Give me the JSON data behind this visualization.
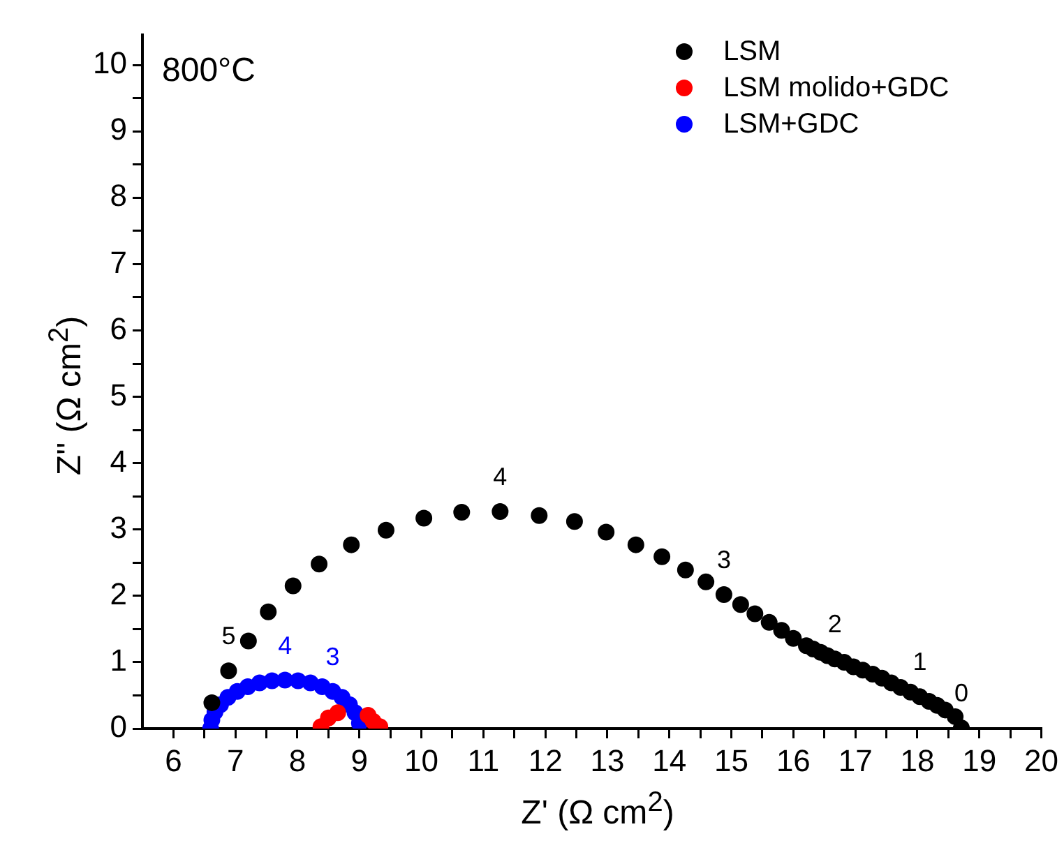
{
  "chart_data": {
    "type": "scatter",
    "xlabel": "Z' (Ω cm$^{2}$)",
    "ylabel": "Z'' (Ω cm$^{2}$)",
    "xlim": [
      5.5,
      20
    ],
    "ylim": [
      0,
      10.45
    ],
    "xticks": [
      6,
      {
        "value": 6.5,
        "label": null
      },
      7,
      {
        "value": 7.5,
        "label": null
      },
      8,
      {
        "value": 8.5,
        "label": null
      },
      9,
      {
        "value": 9.5,
        "label": null
      },
      10,
      {
        "value": 10.5,
        "label": null
      },
      11,
      {
        "value": 11.5,
        "label": null
      },
      12,
      {
        "value": 12.5,
        "label": null
      },
      13,
      {
        "value": 13.5,
        "label": null
      },
      14,
      {
        "value": 14.5,
        "label": null
      },
      15,
      {
        "value": 15.5,
        "label": null
      },
      16,
      {
        "value": 16.5,
        "label": null
      },
      17,
      {
        "value": 17.5,
        "label": null
      },
      18,
      {
        "value": 18.5,
        "label": null
      },
      19,
      {
        "value": 19.5,
        "label": null
      },
      20
    ],
    "yticks": [
      0,
      {
        "value": 0.5,
        "label": null
      },
      1,
      {
        "value": 1.5,
        "label": null
      },
      2,
      {
        "value": 2.5,
        "label": null
      },
      3,
      {
        "value": 3.5,
        "label": null
      },
      4,
      {
        "value": 4.5,
        "label": null
      },
      5,
      {
        "value": 5.5,
        "label": null
      },
      6,
      {
        "value": 6.5,
        "label": null
      },
      7,
      {
        "value": 7.5,
        "label": null
      },
      8,
      {
        "value": 8.5,
        "label": null
      },
      9,
      {
        "value": 9.5,
        "label": null
      },
      10
    ],
    "grid": false,
    "legend": "top right",
    "marker": "circle",
    "series": [
      {
        "name": "LSM",
        "color": "#000000",
        "x": [
          6.62,
          6.89,
          7.21,
          7.53,
          7.93,
          8.35,
          8.87,
          9.43,
          10.04,
          10.65,
          11.27,
          11.9,
          12.47,
          12.98,
          13.46,
          13.88,
          14.26,
          14.59,
          14.88,
          15.15,
          15.38,
          15.61,
          15.81,
          16.0,
          16.21,
          16.32,
          16.44,
          16.55,
          16.67,
          16.82,
          16.97,
          17.12,
          17.28,
          17.43,
          17.58,
          17.73,
          17.89,
          18.04,
          18.19,
          18.32,
          18.45,
          18.61,
          18.71
        ],
        "values": [
          0.39,
          0.87,
          1.32,
          1.76,
          2.15,
          2.48,
          2.77,
          2.99,
          3.17,
          3.26,
          3.27,
          3.21,
          3.12,
          2.96,
          2.77,
          2.59,
          2.39,
          2.21,
          2.02,
          1.87,
          1.73,
          1.6,
          1.48,
          1.36,
          1.25,
          1.2,
          1.15,
          1.1,
          1.05,
          1.0,
          0.93,
          0.88,
          0.82,
          0.76,
          0.69,
          0.62,
          0.55,
          0.48,
          0.41,
          0.35,
          0.28,
          0.18,
          0.01
        ]
      },
      {
        "name": "LSM molido+GDC",
        "color": "#ff0000",
        "x": [
          8.38,
          8.5,
          8.65,
          9.14,
          9.22,
          9.33
        ],
        "values": [
          0.03,
          0.16,
          0.24,
          0.2,
          0.11,
          0.03
        ]
      },
      {
        "name": "LSM+GDC",
        "color": "#0000ff",
        "x": [
          6.6,
          6.62,
          6.67,
          6.76,
          6.88,
          7.03,
          7.2,
          7.39,
          7.59,
          7.8,
          8.01,
          8.21,
          8.4,
          8.57,
          8.72,
          8.84,
          8.93,
          9.0
        ],
        "values": [
          0.0,
          0.13,
          0.25,
          0.36,
          0.47,
          0.56,
          0.63,
          0.69,
          0.72,
          0.73,
          0.72,
          0.69,
          0.63,
          0.56,
          0.47,
          0.36,
          0.24,
          0.08
        ]
      }
    ],
    "annotations": [
      "800°C",
      {
        "text": "5",
        "x": 6.89,
        "y": 0.87
      },
      {
        "text": "4",
        "x": 11.27,
        "y": 3.27
      },
      {
        "text": "3",
        "x": 14.88,
        "y": 2.02
      },
      {
        "text": "2",
        "x": 16.67,
        "y": 1.05
      },
      {
        "text": "1",
        "x": 18.04,
        "y": 0.48
      },
      {
        "text": "0",
        "x": 18.71,
        "y": 0.01
      },
      {
        "text": "4",
        "x": 7.8,
        "y": 0.73
      },
      {
        "text": "3",
        "x": 8.57,
        "y": 0.56
      }
    ]
  }
}
